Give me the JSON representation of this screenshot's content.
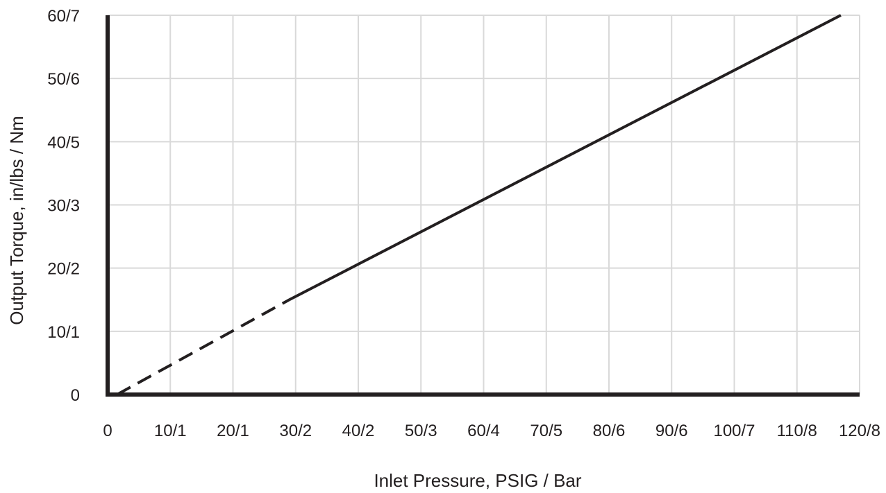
{
  "chart_data": {
    "type": "line",
    "title": "",
    "xlabel": "Inlet Pressure, PSIG / Bar",
    "ylabel": "Output Torque, in/lbs / Nm",
    "xlim": [
      0,
      120
    ],
    "ylim": [
      0,
      60
    ],
    "x_ticks": [
      {
        "value": 0,
        "label": "0"
      },
      {
        "value": 10,
        "label": "10/1"
      },
      {
        "value": 20,
        "label": "20/1"
      },
      {
        "value": 30,
        "label": "30/2"
      },
      {
        "value": 40,
        "label": "40/2"
      },
      {
        "value": 50,
        "label": "50/3"
      },
      {
        "value": 60,
        "label": "60/4"
      },
      {
        "value": 70,
        "label": "70/5"
      },
      {
        "value": 80,
        "label": "80/6"
      },
      {
        "value": 90,
        "label": "90/6"
      },
      {
        "value": 100,
        "label": "100/7"
      },
      {
        "value": 110,
        "label": "110/8"
      },
      {
        "value": 120,
        "label": "120/8"
      }
    ],
    "y_ticks": [
      {
        "value": 0,
        "label": "0"
      },
      {
        "value": 10,
        "label": "10/1"
      },
      {
        "value": 20,
        "label": "20/2"
      },
      {
        "value": 30,
        "label": "30/3"
      },
      {
        "value": 40,
        "label": "40/5"
      },
      {
        "value": 50,
        "label": "50/6"
      },
      {
        "value": 60,
        "label": "60/7"
      }
    ],
    "grid": true,
    "series": [
      {
        "segments": [
          {
            "style": "dashed",
            "points": [
              {
                "x": 1.5,
                "y": 0
              },
              {
                "x": 29,
                "y": 15
              }
            ]
          },
          {
            "style": "solid",
            "points": [
              {
                "x": 29,
                "y": 15
              },
              {
                "x": 117,
                "y": 60
              }
            ]
          }
        ]
      }
    ],
    "colors": {
      "line": "#231f20",
      "grid": "#d9d9d9",
      "axis": "#231f20"
    }
  }
}
